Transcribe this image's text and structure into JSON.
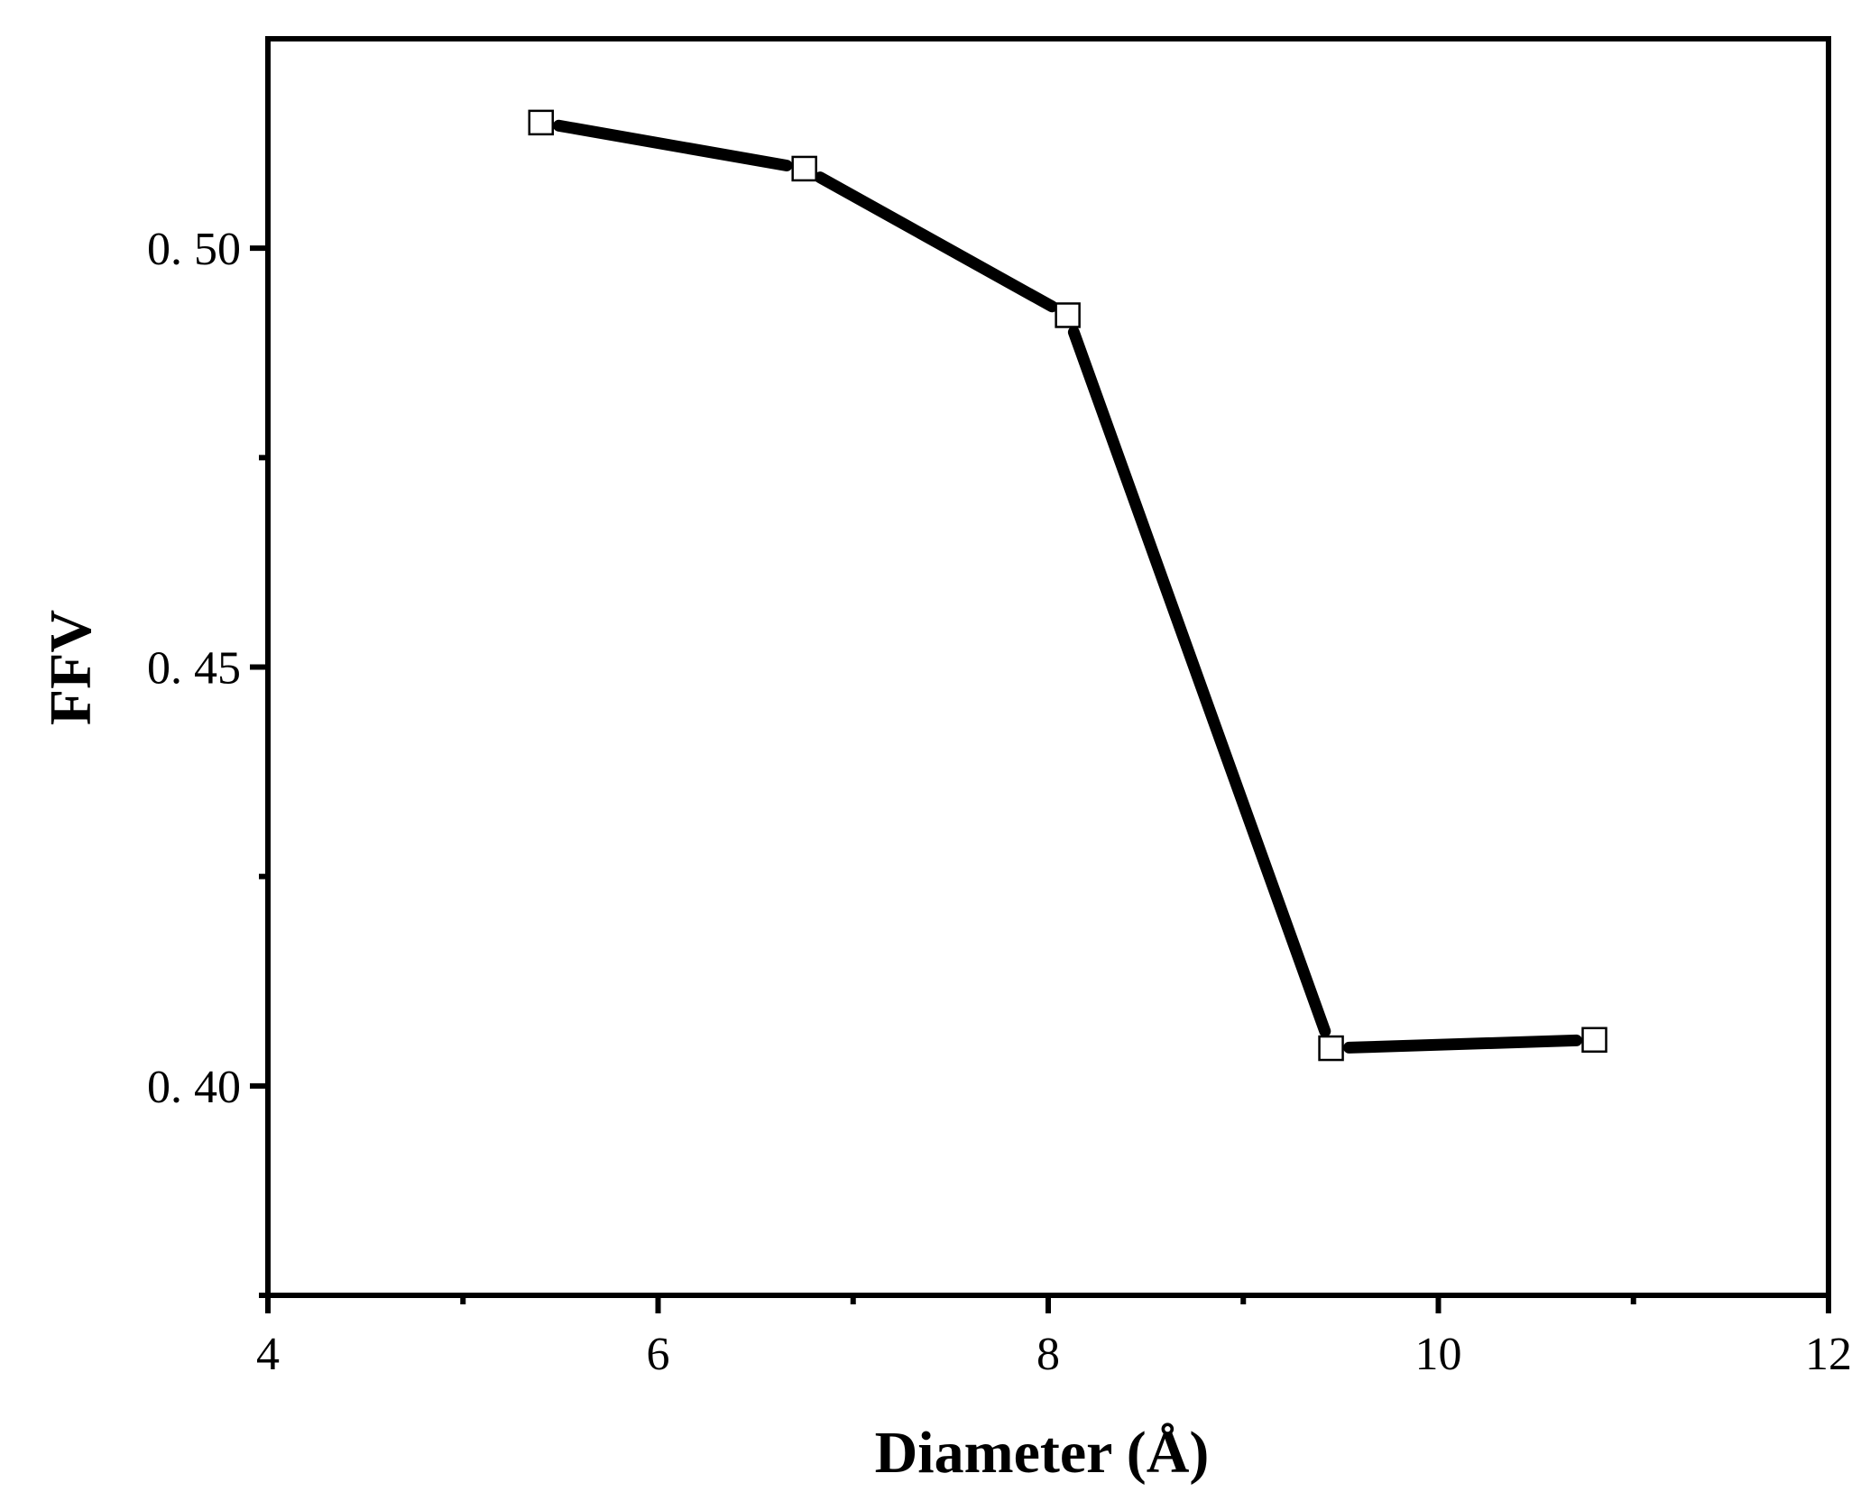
{
  "chart_data": {
    "type": "line",
    "title": "",
    "xlabel": "Diameter (Å)",
    "ylabel": "FFV",
    "xlim": [
      4,
      12
    ],
    "ylim": [
      0.375,
      0.525
    ],
    "x_ticks": [
      4,
      6,
      8,
      10,
      12
    ],
    "x_tick_labels": [
      "4",
      "6",
      "8",
      "10",
      "12"
    ],
    "x_minor_ticks": [
      5,
      7,
      9,
      11
    ],
    "y_ticks": [
      0.4,
      0.45,
      0.5
    ],
    "y_tick_labels": [
      "0. 40",
      "0. 45",
      "0. 50"
    ],
    "y_minor_ticks": [
      0.375,
      0.425,
      0.475
    ],
    "grid": false,
    "legend": "none",
    "series": [
      {
        "marker": "open-square",
        "color": "#000000",
        "x": [
          5.4,
          6.75,
          8.1,
          9.45,
          10.8
        ],
        "y": [
          0.515,
          0.5095,
          0.492,
          0.4045,
          0.4055
        ]
      }
    ]
  }
}
